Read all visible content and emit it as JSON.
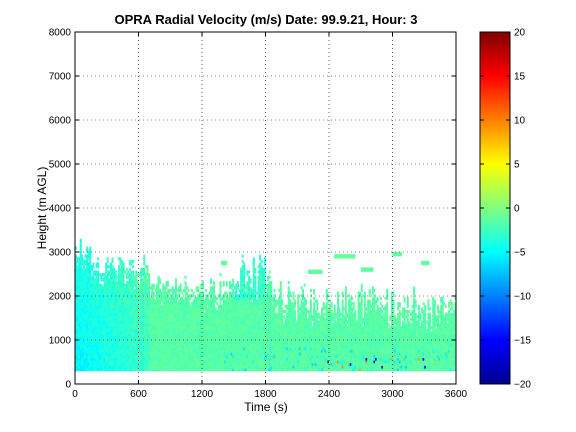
{
  "chart_data": {
    "type": "heatmap",
    "title": "OPRA Radial Velocity (m/s)  Date: 99.9.21, Hour: 3",
    "xlabel": "Time (s)",
    "ylabel": "Height (m AGL)",
    "xlim": [
      0,
      3600
    ],
    "ylim": [
      0,
      8000
    ],
    "xticks": [
      0,
      600,
      1200,
      1800,
      2400,
      3000,
      3600
    ],
    "yticks": [
      0,
      1000,
      2000,
      3000,
      4000,
      5000,
      6000,
      7000,
      8000
    ],
    "grid": true,
    "colormap": "jet",
    "colorbar": {
      "range": [
        -20,
        20
      ],
      "ticks": [
        -20,
        -15,
        -10,
        -5,
        0,
        5,
        10,
        15,
        20
      ],
      "tick_labels": [
        "−20",
        "−15",
        "−10",
        "−5",
        "0",
        "5",
        "10",
        "15",
        "20"
      ]
    },
    "data_region": {
      "note": "Velocity values are mostly between -6 and 0 m/s, with isolated extremes near the lowest gates.",
      "height_range": [
        300,
        3400
      ],
      "dominant_value": -1.5,
      "segments": [
        {
          "time": [
            0,
            700
          ],
          "height_top": 2900,
          "velocity": -5
        },
        {
          "time": [
            700,
            1500
          ],
          "height_top": 2500,
          "velocity": -1.5
        },
        {
          "time": [
            1500,
            1800
          ],
          "height_top": 2900,
          "velocity": -2
        },
        {
          "time": [
            1800,
            3600
          ],
          "height_top": 2200,
          "velocity": -1
        }
      ]
    }
  }
}
